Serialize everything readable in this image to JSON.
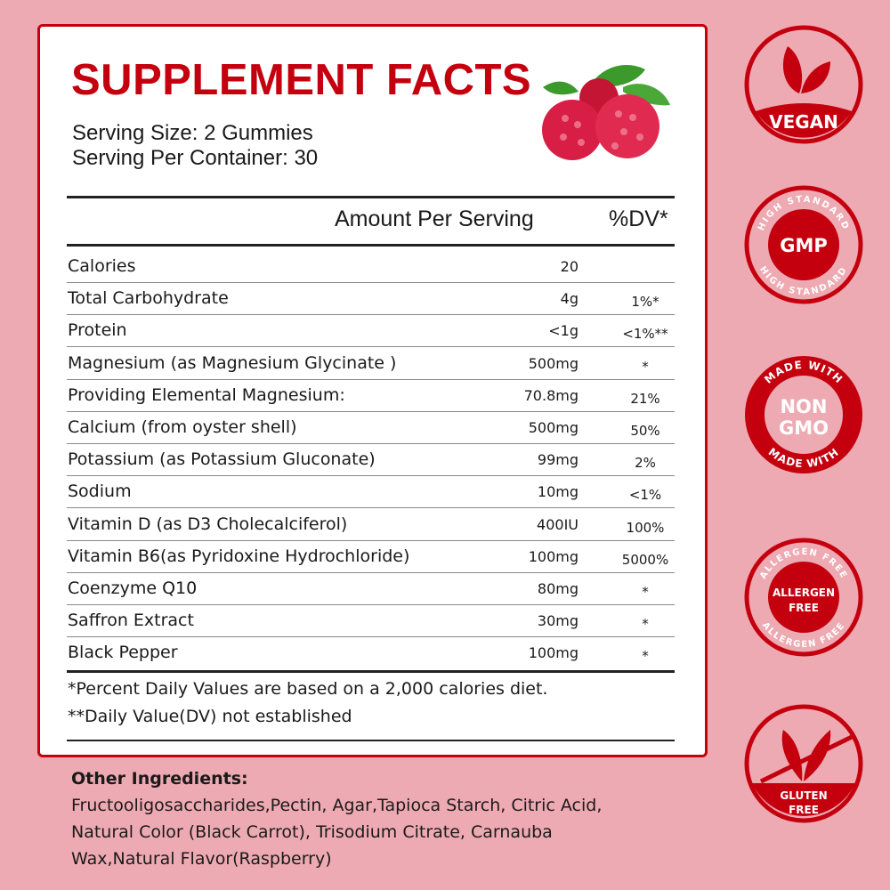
{
  "colors": {
    "background": "#eeaab2",
    "accent": "#c4000f"
  },
  "title": "SUPPLEMENT FACTS",
  "serving_size": "Serving Size: 2 Gummies",
  "servings_per_container": "Serving Per Container: 30",
  "header": {
    "amount": "Amount Per Serving",
    "dv": "%DV*"
  },
  "rows": [
    {
      "name": "Calories",
      "amount": "20",
      "dv": ""
    },
    {
      "name": "Total Carbohydrate",
      "amount": "4g",
      "dv": "1%*"
    },
    {
      "name": "Protein",
      "amount": "<1g",
      "dv": "<1%**"
    },
    {
      "name": "Magnesium (as  Magnesium Glycinate )",
      "amount": "500mg",
      "dv": "*"
    },
    {
      "name": "Providing Elemental Magnesium:",
      "amount": "70.8mg",
      "dv": "21%"
    },
    {
      "name": "Calcium (from oyster shell)",
      "amount": "500mg",
      "dv": "50%"
    },
    {
      "name": "Potassium (as Potassium Gluconate)",
      "amount": "99mg",
      "dv": "2%"
    },
    {
      "name": "Sodium",
      "amount": "10mg",
      "dv": "<1%"
    },
    {
      "name": "Vitamin D (as D3 Cholecalciferol)",
      "amount": "400IU",
      "dv": "100%"
    },
    {
      "name": "Vitamin B6(as Pyridoxine Hydrochloride)",
      "amount": "100mg",
      "dv": "5000%"
    },
    {
      "name": "Coenzyme Q10",
      "amount": "80mg",
      "dv": "*"
    },
    {
      "name": "Saffron Extract",
      "amount": "30mg",
      "dv": "*"
    },
    {
      "name": "Black Pepper",
      "amount": "100mg",
      "dv": "*"
    }
  ],
  "footnotes": [
    "*Percent Daily Values are based on a 2,000 calories diet.",
    "**Daily Value(DV) not established"
  ],
  "other_ingredients": {
    "label": "Other Ingredients:",
    "lines": [
      "Fructooligosaccharides,Pectin, Agar,Tapioca Starch, Citric Acid,",
      "Natural Color (Black Carrot), Trisodium Citrate, Carnauba",
      "Wax,Natural Flavor(Raspberry)"
    ]
  },
  "badges": {
    "vegan": {
      "icon": "leaves-icon",
      "text": "VEGAN"
    },
    "gmp": {
      "center": "GMP",
      "ring": "HIGH STANDARD"
    },
    "non_gmo": {
      "line1": "NON",
      "line2": "GMO",
      "ring": "MADE WITH"
    },
    "allergen": {
      "line1": "ALLERGEN",
      "line2": "FREE",
      "ring": "ALLERGEN FREE"
    },
    "gluten": {
      "icon": "wheat-crossed-icon",
      "line1": "GLUTEN",
      "line2": "FREE"
    }
  }
}
